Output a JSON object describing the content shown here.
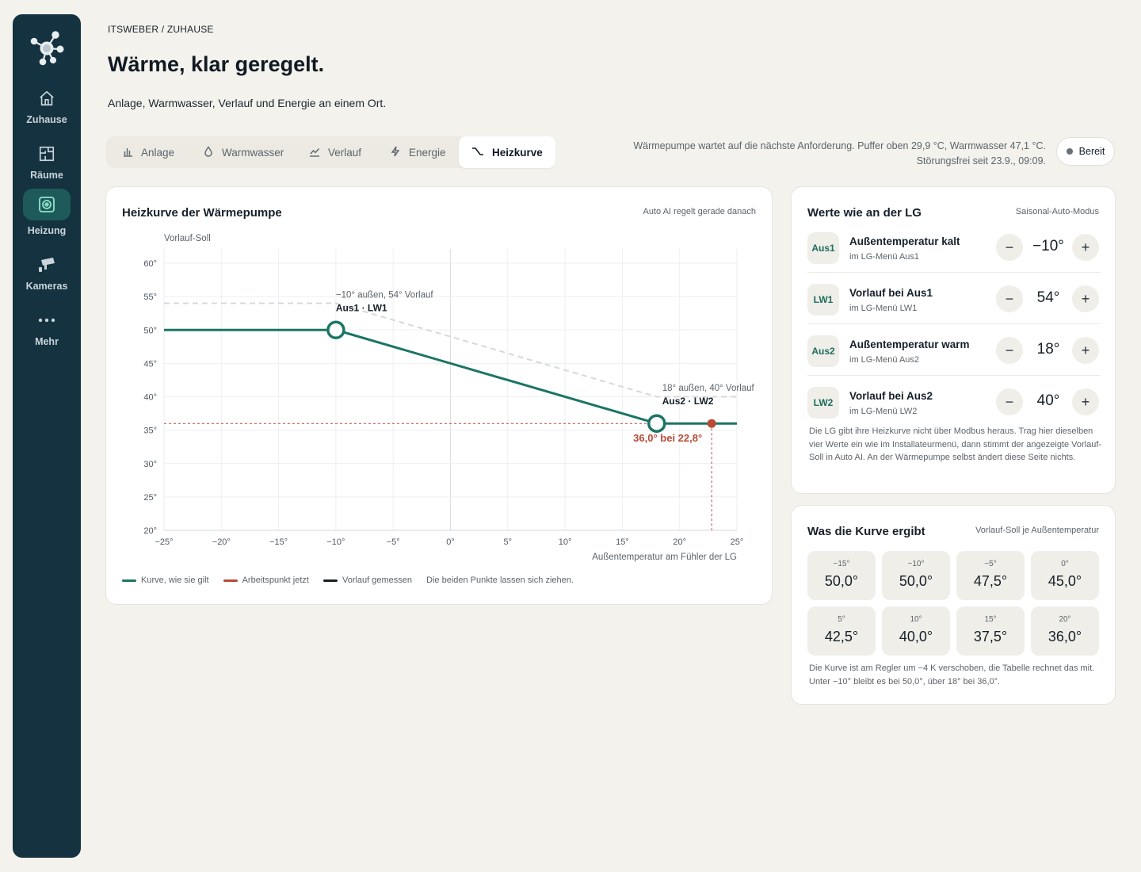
{
  "nav": {
    "items": [
      {
        "label": "Zuhause",
        "icon": "home-icon"
      },
      {
        "label": "Räume",
        "icon": "floorplan-icon"
      },
      {
        "label": "Heizung",
        "icon": "heating-icon"
      },
      {
        "label": "Kameras",
        "icon": "camera-icon"
      },
      {
        "label": "Mehr",
        "icon": "more-icon"
      }
    ],
    "active": "Heizung"
  },
  "header": {
    "breadcrumb": "ITSWEBER / ZUHAUSE",
    "title": "Wärme, klar geregelt.",
    "subtitle": "Anlage, Warmwasser, Verlauf und Energie an einem Ort."
  },
  "tabs": [
    {
      "label": "Anlage",
      "icon": "bar-chart-icon"
    },
    {
      "label": "Warmwasser",
      "icon": "drop-icon"
    },
    {
      "label": "Verlauf",
      "icon": "trend-icon"
    },
    {
      "label": "Energie",
      "icon": "bolt-icon"
    },
    {
      "label": "Heizkurve",
      "icon": "curve-icon",
      "active": true
    }
  ],
  "status": {
    "line1": "Wärmepumpe wartet auf die nächste Anforderung. Puffer oben 29,9 °C, Warmwasser 47,1 °C.",
    "line2": "Störungsfrei seit 23.9., 09:09.",
    "badge": "Bereit"
  },
  "chart_card": {
    "title": "Heizkurve der Wärmepumpe",
    "note": "Auto AI regelt gerade danach",
    "legend": {
      "curve": "Kurve, wie sie gilt",
      "point": "Arbeitspunkt jetzt",
      "measured": "Vorlauf gemessen",
      "hint": "Die beiden Punkte lassen sich ziehen."
    }
  },
  "chart_data": {
    "type": "line",
    "ylabel": "Vorlauf-Soll",
    "xlabel": "Außentemperatur am Fühler der LG",
    "xlim": [
      -25,
      25
    ],
    "ylim": [
      20,
      60
    ],
    "x_ticks": [
      "−25°",
      "−20°",
      "−15°",
      "−10°",
      "−5°",
      "0°",
      "5°",
      "10°",
      "15°",
      "20°",
      "25°"
    ],
    "x_tick_values": [
      -25,
      -20,
      -15,
      -10,
      -5,
      0,
      5,
      10,
      15,
      20,
      25
    ],
    "y_ticks": [
      "20°",
      "25°",
      "30°",
      "35°",
      "40°",
      "45°",
      "50°",
      "55°",
      "60°"
    ],
    "y_tick_values": [
      20,
      25,
      30,
      35,
      40,
      45,
      50,
      55,
      60
    ],
    "grid": true,
    "series": [
      {
        "name": "Kurve, wie sie gilt",
        "color": "#1c7565",
        "points": [
          [
            -25,
            50
          ],
          [
            -10,
            50
          ],
          [
            18,
            36
          ],
          [
            25,
            36
          ]
        ]
      }
    ],
    "reference_line": {
      "color": "#d5d9dc",
      "points": [
        [
          -25,
          54
        ],
        [
          -10,
          54
        ],
        [
          18,
          40
        ],
        [
          25,
          40
        ]
      ]
    },
    "handles": [
      {
        "x": -10,
        "y": 50,
        "label": "Aus1 · LW1",
        "caption": "−10° außen, 54° Vorlauf"
      },
      {
        "x": 18,
        "y": 36,
        "label": "Aus2 · LW2",
        "caption": "18° außen, 40° Vorlauf"
      }
    ],
    "operating_point": {
      "x": 22.8,
      "y": 36.0,
      "label": "36,0° bei 22,8°",
      "color": "#b94a36"
    }
  },
  "lg_card": {
    "title": "Werte wie an der LG",
    "note": "Saisonal-Auto-Modus",
    "rows": [
      {
        "code": "Aus1",
        "name": "Außentemperatur kalt",
        "menu": "im LG-Menü Aus1",
        "value": "−10°"
      },
      {
        "code": "LW1",
        "name": "Vorlauf bei Aus1",
        "menu": "im LG-Menü LW1",
        "value": "54°"
      },
      {
        "code": "Aus2",
        "name": "Außentemperatur warm",
        "menu": "im LG-Menü Aus2",
        "value": "18°"
      },
      {
        "code": "LW2",
        "name": "Vorlauf bei Aus2",
        "menu": "im LG-Menü LW2",
        "value": "40°"
      }
    ],
    "text": "Die LG gibt ihre Heizkurve nicht über Modbus heraus. Trag hier dieselben vier Werte ein wie im Installateurmenü, dann stimmt der angezeigte Vorlauf-Soll in Auto AI. An der Wärmepumpe selbst ändert diese Seite nichts."
  },
  "result_card": {
    "title": "Was die Kurve ergibt",
    "note": "Vorlauf-Soll je Außentemperatur",
    "tiles": [
      {
        "t": "−15°",
        "v": "50,0°"
      },
      {
        "t": "−10°",
        "v": "50,0°"
      },
      {
        "t": "−5°",
        "v": "47,5°"
      },
      {
        "t": "0°",
        "v": "45,0°"
      },
      {
        "t": "5°",
        "v": "42,5°"
      },
      {
        "t": "10°",
        "v": "40,0°"
      },
      {
        "t": "15°",
        "v": "37,5°"
      },
      {
        "t": "20°",
        "v": "36,0°"
      }
    ],
    "text": "Die Kurve ist am Regler um −4 K verschoben, die Tabelle rechnet das mit. Unter −10° bleibt es bei 50,0°, über 18° bei 36,0°."
  }
}
